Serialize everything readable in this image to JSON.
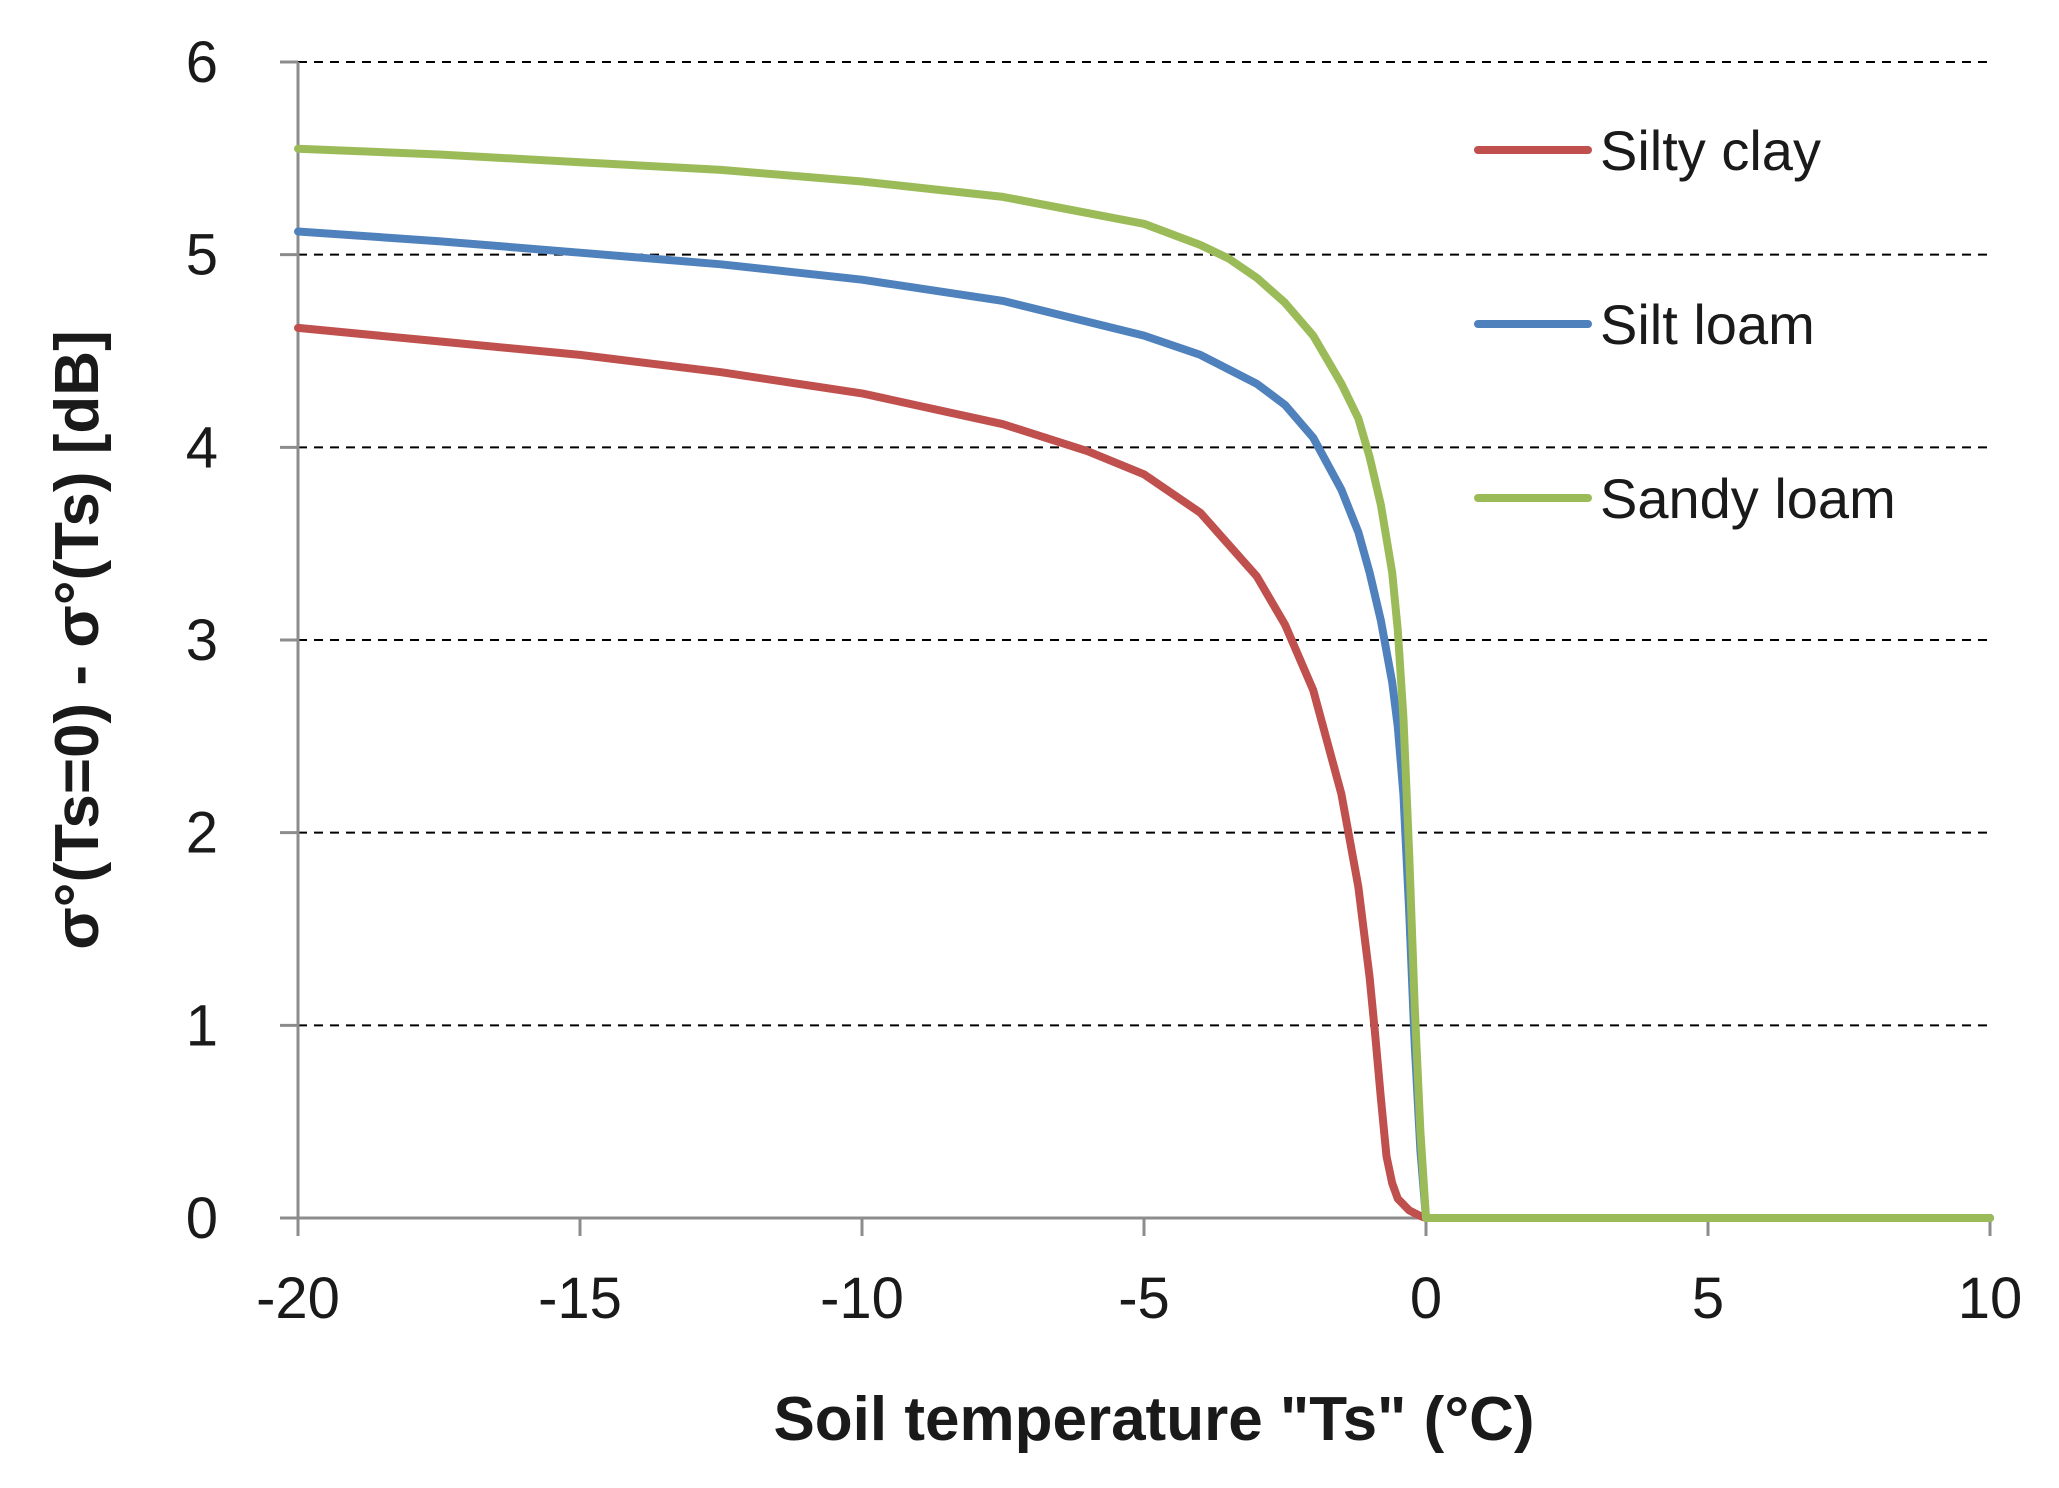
{
  "chart_data": {
    "type": "line",
    "title": "",
    "xlabel": "Soil temperature \"Ts\" (°C)",
    "ylabel": "σ°(Ts=0) - σ°(Ts) [dB]",
    "xlim": [
      -20,
      10
    ],
    "ylim": [
      0,
      6
    ],
    "x_ticks": [
      -20,
      -15,
      -10,
      -5,
      0,
      5,
      10
    ],
    "x_tick_labels": [
      "-20",
      "-15",
      "-10",
      "-5",
      "0",
      "5",
      "10"
    ],
    "y_ticks": [
      0,
      1,
      2,
      3,
      4,
      5,
      6
    ],
    "y_tick_labels": [
      "0",
      "1",
      "2",
      "3",
      "4",
      "5",
      "6"
    ],
    "grid": "horizontal dashed",
    "legend_position": "top-right",
    "series": [
      {
        "name": "Silty clay",
        "color": "#c0504d",
        "x": [
          -20,
          -17.5,
          -15,
          -12.5,
          -10,
          -7.5,
          -6,
          -5,
          -4,
          -3,
          -2.5,
          -2,
          -1.5,
          -1.2,
          -1.0,
          -0.9,
          -0.8,
          -0.7,
          -0.6,
          -0.5,
          -0.3,
          -0.1,
          0,
          10
        ],
        "y": [
          4.62,
          4.55,
          4.48,
          4.39,
          4.28,
          4.12,
          3.98,
          3.86,
          3.66,
          3.33,
          3.08,
          2.74,
          2.2,
          1.72,
          1.25,
          0.95,
          0.62,
          0.32,
          0.18,
          0.1,
          0.04,
          0.01,
          0,
          0
        ]
      },
      {
        "name": "Silt loam",
        "color": "#4f81bd",
        "x": [
          -20,
          -17.5,
          -15,
          -12.5,
          -10,
          -7.5,
          -5,
          -4,
          -3,
          -2.5,
          -2,
          -1.5,
          -1.2,
          -1.0,
          -0.8,
          -0.6,
          -0.5,
          -0.4,
          -0.3,
          -0.2,
          -0.1,
          0,
          10
        ],
        "y": [
          5.12,
          5.07,
          5.01,
          4.95,
          4.87,
          4.76,
          4.58,
          4.48,
          4.33,
          4.22,
          4.05,
          3.78,
          3.56,
          3.35,
          3.1,
          2.78,
          2.55,
          2.2,
          1.6,
          0.9,
          0.35,
          0,
          0
        ]
      },
      {
        "name": "Sandy loam",
        "color": "#9bbb59",
        "x": [
          -20,
          -17.5,
          -15,
          -12.5,
          -10,
          -7.5,
          -5,
          -4,
          -3.5,
          -3,
          -2.5,
          -2,
          -1.5,
          -1.2,
          -1.0,
          -0.8,
          -0.6,
          -0.5,
          -0.4,
          -0.3,
          -0.2,
          -0.1,
          0,
          10
        ],
        "y": [
          5.55,
          5.52,
          5.48,
          5.44,
          5.38,
          5.3,
          5.16,
          5.05,
          4.98,
          4.88,
          4.75,
          4.58,
          4.33,
          4.15,
          3.95,
          3.7,
          3.35,
          3.05,
          2.6,
          1.9,
          1.1,
          0.45,
          0,
          0
        ]
      }
    ]
  }
}
